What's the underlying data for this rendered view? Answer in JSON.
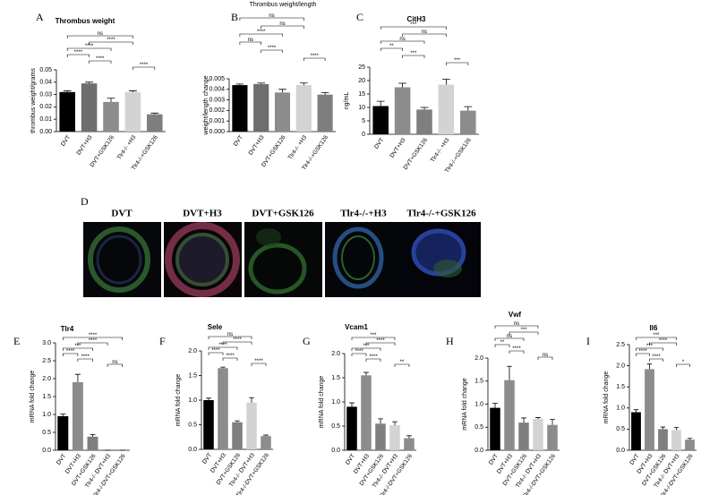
{
  "figure_title": "Thrombus weight/length",
  "panel_d": {
    "letter": "D",
    "labels": [
      "DVT",
      "DVT+H3",
      "DVT+GSK126",
      "Tlr4-/-+H3",
      "Tlr4-/-+GSK126"
    ]
  },
  "chart_data": [
    {
      "type": "bar",
      "letter": "A",
      "title": "Thrombus weight",
      "ylabel": "thrombus weight/grams",
      "categories": [
        "DVT",
        "DVT+H3",
        "DVT+GSK126",
        "Tlr4-/- +H3",
        "Tlr4-/-+GSK126"
      ],
      "values": [
        0.032,
        0.039,
        0.024,
        0.032,
        0.014
      ],
      "errors": [
        0.001,
        0.001,
        0.003,
        0.001,
        0.001
      ],
      "colors": [
        "#000000",
        "#6e6e6e",
        "#8c8c8c",
        "#d3d3d3",
        "#7f7f7f"
      ],
      "ylim": [
        0,
        0.05
      ],
      "yticks": [
        {
          "value": 0,
          "label": "0.00"
        },
        0.01,
        0.02,
        0.03,
        0.04,
        0.05
      ],
      "annotations": [
        {
          "text": "ns",
          "pair": [
            0,
            3
          ]
        },
        {
          "text": "****",
          "pair": [
            1,
            3
          ]
        },
        {
          "text": "****",
          "pair": [
            0,
            2
          ]
        },
        {
          "text": "****",
          "pair": [
            0,
            1
          ]
        },
        {
          "text": "****",
          "pair": [
            1,
            2
          ]
        },
        {
          "text": "****",
          "pair": [
            3,
            4
          ]
        }
      ]
    },
    {
      "type": "bar",
      "letter": "B",
      "title": "",
      "ylabel": "weight/length change",
      "categories": [
        "DVT",
        "DVT+H3",
        "DVT+GSK126",
        "Tlr4-/- +H3",
        "Tlr4-/-+GSK126"
      ],
      "values": [
        0.0044,
        0.0045,
        0.0037,
        0.0044,
        0.0035
      ],
      "errors": [
        0.0001,
        0.0001,
        0.0003,
        0.0002,
        0.0002
      ],
      "colors": [
        "#000000",
        "#6e6e6e",
        "#8c8c8c",
        "#d3d3d3",
        "#7f7f7f"
      ],
      "ylim": [
        0,
        0.005
      ],
      "yticks": [
        {
          "value": 0,
          "label": "0.000"
        },
        0.001,
        0.002,
        0.003,
        0.004,
        0.005
      ],
      "annotations": [
        {
          "text": "ns",
          "pair": [
            0,
            3
          ]
        },
        {
          "text": "ns",
          "pair": [
            1,
            3
          ]
        },
        {
          "text": "****",
          "pair": [
            0,
            2
          ]
        },
        {
          "text": "ns",
          "pair": [
            0,
            1
          ]
        },
        {
          "text": "****",
          "pair": [
            1,
            2
          ]
        },
        {
          "text": "****",
          "pair": [
            3,
            4
          ]
        }
      ]
    },
    {
      "type": "bar",
      "letter": "C",
      "title": "CitH3",
      "ylabel": "ng/mL",
      "categories": [
        "DVT",
        "DVT+H3",
        "DVT+GSK126",
        "Tlr4-/- +H3",
        "Tlr4-/-+GSK126"
      ],
      "values": [
        10.5,
        17.5,
        9.2,
        18.5,
        8.8
      ],
      "errors": [
        1.8,
        1.5,
        0.8,
        2,
        1.5
      ],
      "colors": [
        "#000000",
        "#8c8c8c",
        "#7f7f7f",
        "#d3d3d3",
        "#8c8c8c"
      ],
      "ylim": [
        0,
        25
      ],
      "yticks": [
        0,
        5,
        10,
        15,
        20,
        25
      ],
      "annotations": [
        {
          "text": "***",
          "pair": [
            0,
            3
          ]
        },
        {
          "text": "ns",
          "pair": [
            1,
            3
          ]
        },
        {
          "text": "ns",
          "pair": [
            0,
            2
          ]
        },
        {
          "text": "**",
          "pair": [
            0,
            1
          ]
        },
        {
          "text": "***",
          "pair": [
            1,
            2
          ]
        },
        {
          "text": "***",
          "pair": [
            3,
            4
          ]
        }
      ]
    },
    {
      "type": "bar",
      "letter": "E",
      "title": "Tlr4",
      "ylabel": "mRNA fold change",
      "categories": [
        "DVT",
        "DVT+H3",
        "DVT+GSK126",
        "Tlr4-/- DVT+H3",
        "Tlr4-/-DVT+GSK126"
      ],
      "values": [
        0.95,
        1.9,
        0.38,
        0,
        0
      ],
      "errors": [
        0.06,
        0.22,
        0.06,
        0,
        0
      ],
      "colors": [
        "#000000",
        "#8c8c8c",
        "#7f7f7f",
        "#d3d3d3",
        "#8c8c8c"
      ],
      "ylim": [
        0,
        3
      ],
      "yticks": [
        {
          "value": 0,
          "label": "0.0"
        },
        0.5,
        {
          "value": 1,
          "label": "1.0"
        },
        1.5,
        {
          "value": 2,
          "label": "2.0"
        },
        2.5,
        {
          "value": 3,
          "label": "3.0"
        }
      ],
      "annotations": [
        {
          "text": "****",
          "pair": [
            0,
            4
          ]
        },
        {
          "text": "****",
          "pair": [
            1,
            3
          ]
        },
        {
          "text": "***",
          "pair": [
            0,
            2
          ]
        },
        {
          "text": "****",
          "pair": [
            0,
            1
          ]
        },
        {
          "text": "****",
          "pair": [
            1,
            2
          ]
        },
        {
          "text": "ns",
          "pair": [
            3,
            4
          ]
        }
      ]
    },
    {
      "type": "bar",
      "letter": "F",
      "title": "Sele",
      "ylabel": "mRNA fold change",
      "categories": [
        "DVT",
        "DVT+H3",
        "DVT+GSK126",
        "Tlr4-/- DVT+H3",
        "Tlr4-/-DVT+GSK126"
      ],
      "values": [
        1.0,
        1.65,
        0.55,
        0.95,
        0.27
      ],
      "errors": [
        0.04,
        0.02,
        0.03,
        0.1,
        0.02
      ],
      "colors": [
        "#000000",
        "#8c8c8c",
        "#7f7f7f",
        "#d3d3d3",
        "#8c8c8c"
      ],
      "ylim": [
        0,
        2
      ],
      "yticks": [
        {
          "value": 0,
          "label": "0.0"
        },
        0.5,
        {
          "value": 1,
          "label": "1.0"
        },
        1.5,
        {
          "value": 2,
          "label": "2.0"
        }
      ],
      "annotations": [
        {
          "text": "ns",
          "pair": [
            0,
            3
          ]
        },
        {
          "text": "****",
          "pair": [
            1,
            3
          ]
        },
        {
          "text": "****",
          "pair": [
            0,
            2
          ]
        },
        {
          "text": "****",
          "pair": [
            0,
            1
          ]
        },
        {
          "text": "****",
          "pair": [
            1,
            2
          ]
        },
        {
          "text": "****",
          "pair": [
            3,
            4
          ]
        }
      ]
    },
    {
      "type": "bar",
      "letter": "G",
      "title": "Vcam1",
      "ylabel": "mRNA fold change",
      "categories": [
        "DVT",
        "DVT+H3",
        "DVT+GSK126",
        "Tlr4-/- DVT+H3",
        "Tlr4-/-DVT+GSK126"
      ],
      "values": [
        0.9,
        1.55,
        0.55,
        0.52,
        0.25
      ],
      "errors": [
        0.08,
        0.06,
        0.1,
        0.07,
        0.05
      ],
      "colors": [
        "#000000",
        "#8c8c8c",
        "#7f7f7f",
        "#d3d3d3",
        "#8c8c8c"
      ],
      "ylim": [
        0,
        2
      ],
      "yticks": [
        {
          "value": 0,
          "label": "0.0"
        },
        0.5,
        {
          "value": 1,
          "label": "1.0"
        },
        1.5,
        {
          "value": 2,
          "label": "2.0"
        }
      ],
      "annotations": [
        {
          "text": "***",
          "pair": [
            0,
            3
          ]
        },
        {
          "text": "****",
          "pair": [
            1,
            3
          ]
        },
        {
          "text": "***",
          "pair": [
            0,
            2
          ]
        },
        {
          "text": "****",
          "pair": [
            0,
            1
          ]
        },
        {
          "text": "****",
          "pair": [
            1,
            2
          ]
        },
        {
          "text": "**",
          "pair": [
            3,
            4
          ]
        }
      ]
    },
    {
      "type": "bar",
      "letter": "H",
      "title": "Vwf",
      "ylabel": "mRNA fold change",
      "categories": [
        "DVT",
        "DVT+H3",
        "DVT+GSK126",
        "Tlr4-/- DVT+H3",
        "Tlr4-/-DVT+GSK126"
      ],
      "values": [
        0.92,
        1.52,
        0.6,
        0.68,
        0.55
      ],
      "errors": [
        0.1,
        0.3,
        0.1,
        0.03,
        0.12
      ],
      "colors": [
        "#000000",
        "#8c8c8c",
        "#7f7f7f",
        "#d3d3d3",
        "#8c8c8c"
      ],
      "ylim": [
        0,
        2
      ],
      "yticks": [
        {
          "value": 0,
          "label": "0.0"
        },
        0.5,
        {
          "value": 1,
          "label": "1.0"
        },
        1.5,
        {
          "value": 2,
          "label": "2.0"
        }
      ],
      "annotations": [
        {
          "text": "ns",
          "pair": [
            0,
            3
          ]
        },
        {
          "text": "***",
          "pair": [
            1,
            3
          ]
        },
        {
          "text": "ns",
          "pair": [
            0,
            2
          ]
        },
        {
          "text": "**",
          "pair": [
            0,
            1
          ]
        },
        {
          "text": "****",
          "pair": [
            1,
            2
          ]
        },
        {
          "text": "ns",
          "pair": [
            3,
            4
          ]
        }
      ]
    },
    {
      "type": "bar",
      "letter": "I",
      "title": "Il6",
      "ylabel": "mRNA fold change",
      "categories": [
        "DVT",
        "DVT+H3",
        "DVT+GSK126",
        "Tlr4-/- DVT+H3",
        "Tlr4-/-DVT+GSK126"
      ],
      "values": [
        0.9,
        1.92,
        0.5,
        0.48,
        0.25
      ],
      "errors": [
        0.06,
        0.12,
        0.05,
        0.06,
        0.03
      ],
      "colors": [
        "#000000",
        "#8c8c8c",
        "#7f7f7f",
        "#d3d3d3",
        "#8c8c8c"
      ],
      "ylim": [
        0,
        2.5
      ],
      "yticks": [
        {
          "value": 0,
          "label": "0.0"
        },
        0.5,
        {
          "value": 1,
          "label": "1.0"
        },
        1.5,
        {
          "value": 2,
          "label": "2.0"
        },
        2.5
      ],
      "annotations": [
        {
          "text": "***",
          "pair": [
            0,
            3
          ]
        },
        {
          "text": "****",
          "pair": [
            1,
            3
          ]
        },
        {
          "text": "***",
          "pair": [
            0,
            2
          ]
        },
        {
          "text": "****",
          "pair": [
            0,
            1
          ]
        },
        {
          "text": "****",
          "pair": [
            1,
            2
          ]
        },
        {
          "text": "*",
          "pair": [
            3,
            4
          ]
        }
      ]
    }
  ]
}
